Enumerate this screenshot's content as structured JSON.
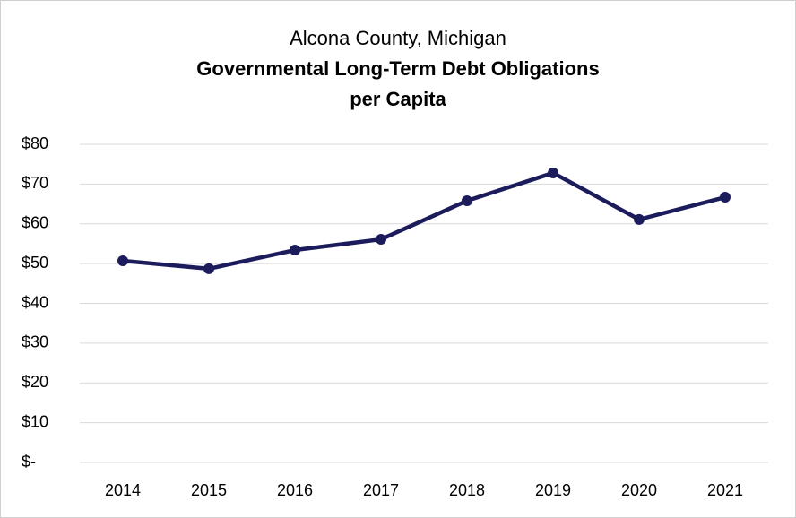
{
  "chart_data": {
    "type": "line",
    "subtitle": "Alcona County, Michigan",
    "title": [
      "Governmental Long-Term Debt Obligations",
      "per Capita"
    ],
    "categories": [
      "2014",
      "2015",
      "2016",
      "2017",
      "2018",
      "2019",
      "2020",
      "2021"
    ],
    "series": [
      {
        "color": "#1c1c5c",
        "values": [
          50.7,
          48.7,
          53.4,
          56.1,
          65.8,
          72.8,
          61.1,
          66.7
        ]
      }
    ],
    "ylim": [
      0,
      80
    ],
    "yticks": [
      {
        "value": 0,
        "label": "$-"
      },
      {
        "value": 10,
        "label": "$10"
      },
      {
        "value": 20,
        "label": "$20"
      },
      {
        "value": 30,
        "label": "$30"
      },
      {
        "value": 40,
        "label": "$40"
      },
      {
        "value": 50,
        "label": "$50"
      },
      {
        "value": 60,
        "label": "$60"
      },
      {
        "value": 70,
        "label": "$70"
      },
      {
        "value": 80,
        "label": "$80"
      }
    ],
    "grid": true
  }
}
